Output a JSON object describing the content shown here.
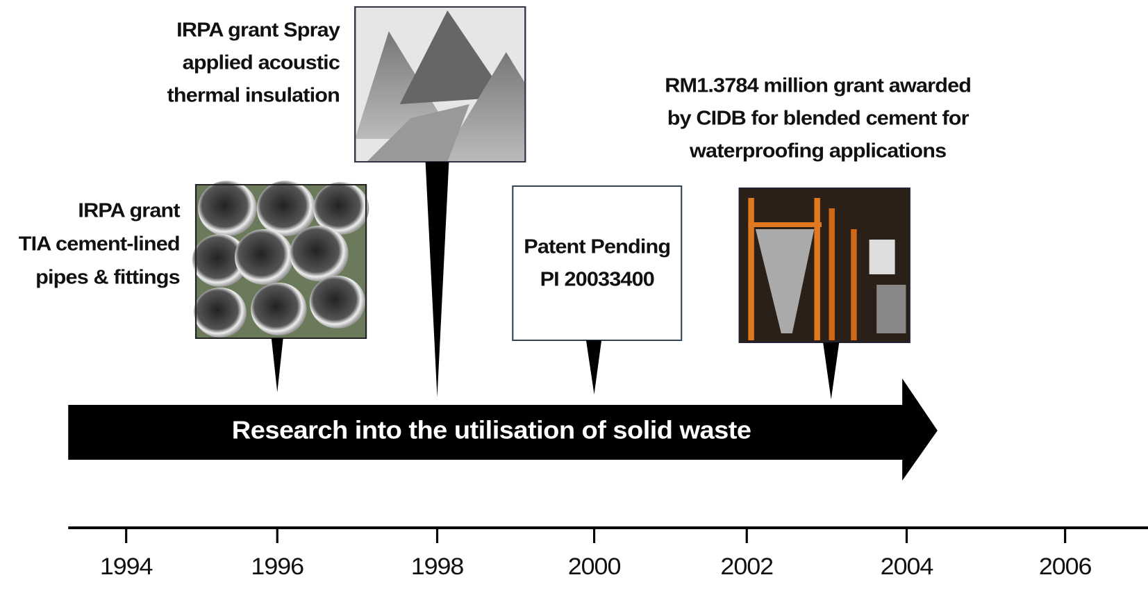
{
  "events": [
    {
      "lines": [
        "IRPA grant",
        "TIA cement-lined",
        "pipes & fittings"
      ]
    },
    {
      "lines": [
        "IRPA grant Spray",
        "applied acoustic",
        "thermal insulation"
      ]
    },
    {
      "lines": [
        "Patent Pending",
        "PI 20033400"
      ]
    },
    {
      "lines": [
        "RM1.3784 million grant awarded",
        "by CIDB for blended cement for",
        "waterproofing applications"
      ]
    }
  ],
  "arrow": {
    "label": "Research  into the utilisation of solid waste"
  },
  "axis": {
    "ticks": [
      "1994",
      "1996",
      "1998",
      "2000",
      "2002",
      "2004",
      "2006"
    ]
  }
}
